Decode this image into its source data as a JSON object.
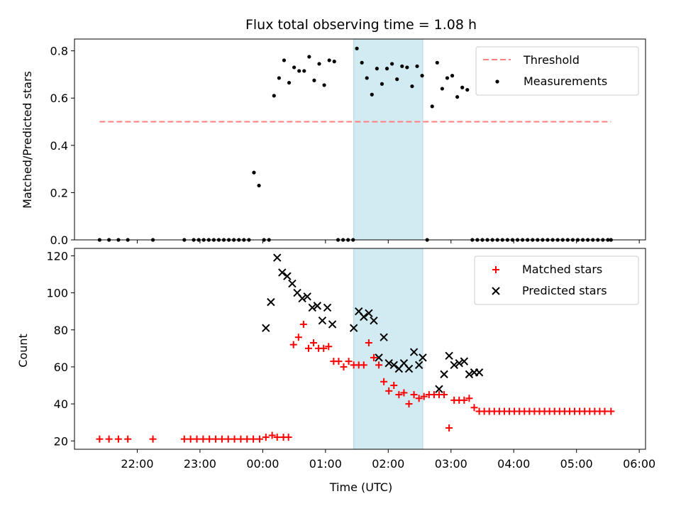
{
  "chart_data": [
    {
      "panel": "top",
      "type": "scatter",
      "title": "Flux total observing time = 1.08 h",
      "ylabel": "Matched/Predicted stars",
      "xlabel": "",
      "xlim": [
        21.0,
        30.1
      ],
      "ylim": [
        0.0,
        0.85
      ],
      "yticks": [
        0.0,
        0.2,
        0.4,
        0.6,
        0.8
      ],
      "ytick_labels": [
        "0.0",
        "0.2",
        "0.4",
        "0.6",
        "0.8"
      ],
      "shaded_region": [
        25.45,
        26.55
      ],
      "colors": {
        "measurements": "#000000",
        "threshold": "#ff7f7f",
        "shade": "#add8e6"
      },
      "legend": [
        "Threshold",
        "Measurements"
      ],
      "threshold": {
        "name": "Threshold",
        "x": [
          21.4,
          29.55
        ],
        "y": 0.5
      },
      "series": [
        {
          "name": "Measurements",
          "x": [
            21.4,
            21.55,
            21.7,
            21.85,
            22.25,
            22.75,
            22.9,
            22.98,
            23.06,
            23.14,
            23.22,
            23.3,
            23.38,
            23.46,
            23.54,
            23.62,
            23.7,
            23.78,
            23.86,
            23.94,
            24.02,
            24.1,
            24.18,
            24.26,
            24.34,
            24.42,
            24.5,
            24.58,
            24.66,
            24.74,
            24.82,
            24.9,
            24.98,
            25.06,
            25.14,
            25.2,
            25.28,
            25.36,
            25.44,
            25.5,
            25.58,
            25.66,
            25.74,
            25.82,
            25.9,
            25.98,
            26.06,
            26.14,
            26.22,
            26.3,
            26.38,
            26.46,
            26.54,
            26.62,
            26.7,
            26.78,
            26.86,
            26.94,
            27.02,
            27.1,
            27.18,
            27.26,
            27.34,
            27.42,
            27.5,
            27.58,
            27.66,
            27.74,
            27.82,
            27.9,
            27.98,
            28.06,
            28.14,
            28.22,
            28.3,
            28.38,
            28.46,
            28.54,
            28.62,
            28.7,
            28.78,
            28.86,
            28.94,
            29.02,
            29.1,
            29.18,
            29.26,
            29.34,
            29.42,
            29.5,
            29.55
          ],
          "y": [
            0,
            0,
            0,
            0,
            0,
            0,
            0,
            0,
            0,
            0,
            0,
            0,
            0,
            0,
            0,
            0,
            0,
            0,
            0.285,
            0.23,
            0,
            0,
            0.61,
            0.685,
            0.76,
            0.665,
            0.73,
            0.715,
            0.715,
            0.775,
            0.675,
            0.745,
            0.655,
            0.76,
            0.755,
            0,
            0,
            0,
            0,
            0.81,
            0.75,
            0.685,
            0.615,
            0.725,
            0.66,
            0.725,
            0.745,
            0.68,
            0.735,
            0.73,
            0.65,
            0.735,
            0.695,
            0,
            0.565,
            0.75,
            0.64,
            0.685,
            0.695,
            0.605,
            0.645,
            0.635,
            0,
            0,
            0,
            0,
            0,
            0,
            0,
            0,
            0,
            0,
            0,
            0,
            0,
            0,
            0,
            0,
            0,
            0,
            0,
            0,
            0,
            0,
            0,
            0,
            0,
            0,
            0,
            0,
            0
          ]
        }
      ]
    },
    {
      "panel": "bottom",
      "type": "scatter",
      "title": "",
      "ylabel": "Count",
      "xlabel": "Time (UTC)",
      "xlim": [
        21.0,
        30.1
      ],
      "ylim": [
        15.5,
        124
      ],
      "yticks": [
        20,
        40,
        60,
        80,
        100,
        120
      ],
      "ytick_labels": [
        "20",
        "40",
        "60",
        "80",
        "100",
        "120"
      ],
      "xticks": [
        22,
        23,
        24,
        25,
        26,
        27,
        28,
        29,
        30
      ],
      "xtick_labels": [
        "22:00",
        "23:00",
        "00:00",
        "01:00",
        "02:00",
        "03:00",
        "04:00",
        "05:00",
        "06:00"
      ],
      "shaded_region": [
        25.45,
        26.55
      ],
      "colors": {
        "matched": "#ff0000",
        "predicted": "#000000",
        "shade": "#add8e6"
      },
      "legend": [
        "Matched stars",
        "Predicted stars"
      ],
      "series": [
        {
          "name": "Matched stars",
          "marker": "plus",
          "x": [
            21.4,
            21.55,
            21.7,
            21.85,
            22.25,
            22.75,
            22.85,
            22.95,
            23.05,
            23.15,
            23.25,
            23.35,
            23.45,
            23.55,
            23.65,
            23.75,
            23.85,
            23.95,
            24.05,
            24.15,
            24.23,
            24.33,
            24.41,
            24.49,
            24.57,
            24.65,
            24.73,
            24.81,
            24.89,
            24.97,
            25.05,
            25.13,
            25.21,
            25.29,
            25.37,
            25.45,
            25.53,
            25.61,
            25.69,
            25.77,
            25.85,
            25.93,
            26.01,
            26.09,
            26.17,
            26.25,
            26.33,
            26.41,
            26.49,
            26.57,
            26.65,
            26.73,
            26.81,
            26.89,
            26.97,
            27.05,
            27.13,
            27.21,
            27.29,
            27.37,
            27.45,
            27.53,
            27.61,
            27.69,
            27.77,
            27.85,
            27.93,
            28.01,
            28.09,
            28.17,
            28.25,
            28.33,
            28.41,
            28.49,
            28.57,
            28.65,
            28.73,
            28.81,
            28.89,
            28.97,
            29.05,
            29.13,
            29.21,
            29.29,
            29.37,
            29.45,
            29.55
          ],
          "y": [
            21,
            21,
            21,
            21,
            21,
            21,
            21,
            21,
            21,
            21,
            21,
            21,
            21,
            21,
            21,
            21,
            21,
            21,
            22,
            23,
            22,
            22,
            22,
            72,
            76,
            83,
            70,
            73,
            70,
            70,
            71,
            63,
            63,
            60,
            63,
            61,
            61,
            61,
            73,
            65,
            61,
            52,
            47,
            50,
            45,
            46,
            40,
            45,
            43,
            44,
            45,
            45,
            45,
            45,
            27,
            42,
            42,
            42,
            43,
            38,
            36,
            36,
            36,
            36,
            36,
            36,
            36,
            36,
            36,
            36,
            36,
            36,
            36,
            36,
            36,
            36,
            36,
            36,
            36,
            36,
            36,
            36,
            36,
            36,
            36,
            36,
            36
          ]
        },
        {
          "name": "Predicted stars",
          "marker": "x",
          "x": [
            24.05,
            24.13,
            24.23,
            24.31,
            24.39,
            24.47,
            24.55,
            24.63,
            24.71,
            24.79,
            24.87,
            24.95,
            25.03,
            25.11,
            25.45,
            25.53,
            25.61,
            25.69,
            25.77,
            25.85,
            25.93,
            26.01,
            26.09,
            26.17,
            26.25,
            26.33,
            26.41,
            26.49,
            26.55,
            26.81,
            26.89,
            26.97,
            27.05,
            27.13,
            27.21,
            27.29,
            27.37,
            27.45
          ],
          "y": [
            81,
            95,
            119,
            111,
            109,
            105,
            100,
            97,
            98,
            92,
            93,
            85,
            92,
            83,
            81,
            90,
            87,
            89,
            85,
            65,
            76,
            62,
            61,
            59,
            62,
            59,
            68,
            61,
            65,
            48,
            56,
            66,
            61,
            62,
            63,
            56,
            57,
            57
          ]
        }
      ]
    }
  ]
}
